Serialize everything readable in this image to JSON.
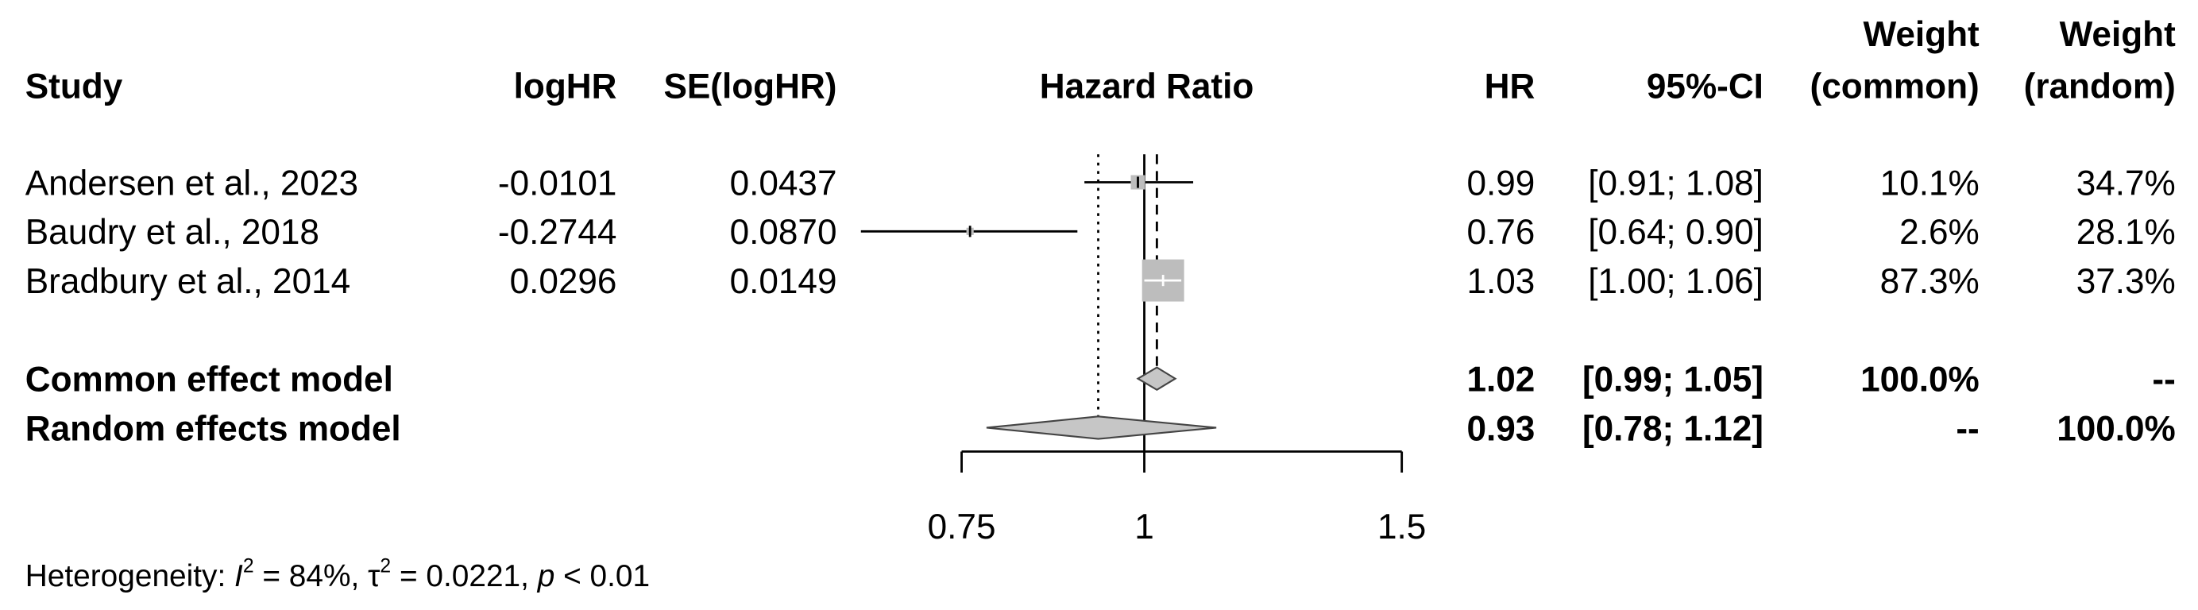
{
  "chart_data": {
    "type": "forest",
    "columns": {
      "study": "Study",
      "loghr": "logHR",
      "se": "SE(logHR)",
      "plot": "Hazard Ratio",
      "hr": "HR",
      "ci": "95%-CI",
      "weight_common": [
        "Weight",
        "(common)"
      ],
      "weight_random": [
        "Weight",
        "(random)"
      ]
    },
    "studies": [
      {
        "name": "Andersen et al., 2023",
        "loghr": -0.0101,
        "se": "0.0437",
        "hr": 0.99,
        "ci": [
          0.91,
          1.08
        ],
        "ci_label": "[0.91; 1.08]",
        "weight_common": 10.1,
        "weight_common_label": "10.1%",
        "weight_random": "34.7%"
      },
      {
        "name": "Baudry et al., 2018",
        "loghr": -0.2744,
        "se": "0.0870",
        "hr": 0.76,
        "ci": [
          0.64,
          0.9
        ],
        "ci_label": "[0.64; 0.90]",
        "weight_common": 2.6,
        "weight_common_label": "2.6%",
        "weight_random": "28.1%"
      },
      {
        "name": "Bradbury et al., 2014",
        "loghr": 0.0296,
        "se": "0.0149",
        "hr": 1.03,
        "ci": [
          1.0,
          1.06
        ],
        "ci_label": "[1.00; 1.06]",
        "weight_common": 87.3,
        "weight_common_label": "87.3%",
        "weight_random": "37.3%"
      }
    ],
    "models": [
      {
        "name": "Common effect model",
        "hr": 1.02,
        "ci": [
          0.99,
          1.05
        ],
        "ci_label": "[0.99; 1.05]",
        "weight_common": "100.0%",
        "weight_random": "--",
        "line": "dashed"
      },
      {
        "name": "Random effects model",
        "hr": 0.93,
        "ci": [
          0.78,
          1.12
        ],
        "ci_label": "[0.78; 1.12]",
        "weight_common": "--",
        "weight_random": "100.0%",
        "line": "dotted"
      }
    ],
    "x_scale": "log",
    "xlim": [
      0.75,
      1.5
    ],
    "xticks": [
      0.75,
      1,
      1.5
    ],
    "null_value": 1,
    "square_color": "#bdbdbd",
    "diamond_color": "#c6c6c6",
    "heterogeneity": [
      "Heterogeneity: ",
      "I",
      "2",
      " = 84%, ",
      "τ",
      "2",
      " = 0.0221, ",
      "p",
      " < 0.01"
    ]
  }
}
